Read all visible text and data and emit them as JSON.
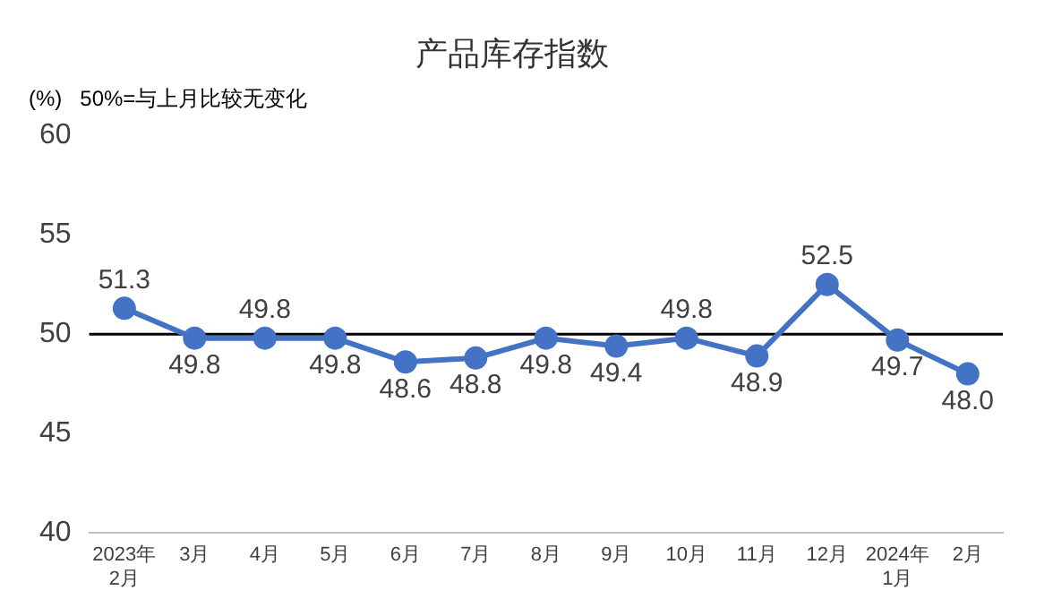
{
  "chart_data": {
    "type": "line",
    "title": "产品库存指数",
    "ylabel": "(%)",
    "annotations": [
      "50%=与上月比较无变化"
    ],
    "categories": [
      "2023年\n2月",
      "3月",
      "4月",
      "5月",
      "6月",
      "7月",
      "8月",
      "9月",
      "10月",
      "11月",
      "12月",
      "2024年\n1月",
      "2月"
    ],
    "series": [
      {
        "color": "#4472c4",
        "values": [
          51.3,
          49.8,
          49.8,
          49.8,
          48.6,
          48.8,
          49.8,
          49.4,
          49.8,
          48.9,
          52.5,
          49.7,
          48.0
        ]
      }
    ],
    "ylim": [
      40,
      60
    ],
    "yticks": [
      40,
      45,
      50,
      55,
      60
    ],
    "grid": false,
    "legend": false,
    "value_labels": [
      "51.3",
      "49.8",
      "49.8",
      "49.8",
      "48.6",
      "48.8",
      "49.8",
      "49.4",
      "49.8",
      "48.9",
      "52.5",
      "49.7",
      "48.0"
    ],
    "marker": "circle",
    "line_style": "solid",
    "ref_lines": [
      {
        "axis": "y",
        "value": 50,
        "color": "#000000"
      }
    ]
  }
}
